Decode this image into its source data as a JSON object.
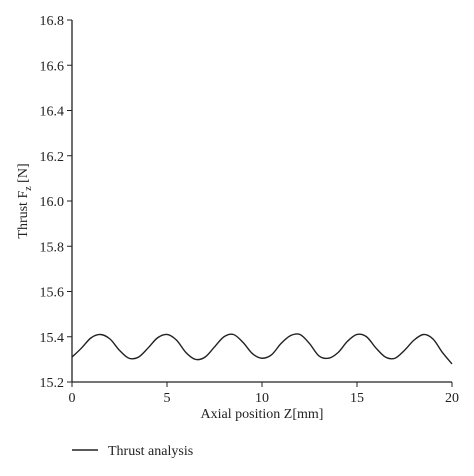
{
  "chart_data": {
    "type": "line",
    "title": "",
    "xlabel": "Axial position Z[mm]",
    "ylabel": {
      "prefix": "Thrust F",
      "subscript": "z",
      "suffix": " [N]"
    },
    "xlim": [
      0,
      20
    ],
    "ylim": [
      15.2,
      16.8
    ],
    "xticks": [
      "0",
      "5",
      "10",
      "15",
      "20"
    ],
    "xtick_values": [
      0,
      5,
      10,
      15,
      20
    ],
    "yticks": [
      "15.2",
      "15.4",
      "15.6",
      "15.8",
      "16.0",
      "16.2",
      "16.4",
      "16.6",
      "16.8"
    ],
    "ytick_values": [
      15.2,
      15.4,
      15.6,
      15.8,
      16.0,
      16.2,
      16.4,
      16.6,
      16.8
    ],
    "grid": false,
    "legend_position": "bottom-left",
    "series": [
      {
        "name": "Thrust analysis",
        "color": "#222222",
        "x": [
          0,
          0.5,
          1.0,
          1.5,
          2.0,
          2.5,
          3.0,
          3.5,
          4.0,
          4.5,
          5.0,
          5.5,
          6.0,
          6.5,
          7.0,
          7.5,
          8.0,
          8.5,
          9.0,
          9.5,
          10.0,
          10.5,
          11.0,
          11.5,
          12.0,
          12.5,
          13.0,
          13.5,
          14.0,
          14.5,
          15.0,
          15.5,
          16.0,
          16.5,
          17.0,
          17.5,
          18.0,
          18.5,
          19.0,
          19.5,
          20.0
        ],
        "y": [
          15.31,
          15.35,
          15.395,
          15.41,
          15.39,
          15.34,
          15.305,
          15.31,
          15.35,
          15.395,
          15.41,
          15.385,
          15.33,
          15.3,
          15.31,
          15.355,
          15.4,
          15.41,
          15.375,
          15.325,
          15.305,
          15.32,
          15.37,
          15.405,
          15.41,
          15.37,
          15.315,
          15.305,
          15.33,
          15.38,
          15.41,
          15.4,
          15.35,
          15.31,
          15.305,
          15.34,
          15.385,
          15.41,
          15.39,
          15.33,
          15.28
        ]
      }
    ]
  }
}
